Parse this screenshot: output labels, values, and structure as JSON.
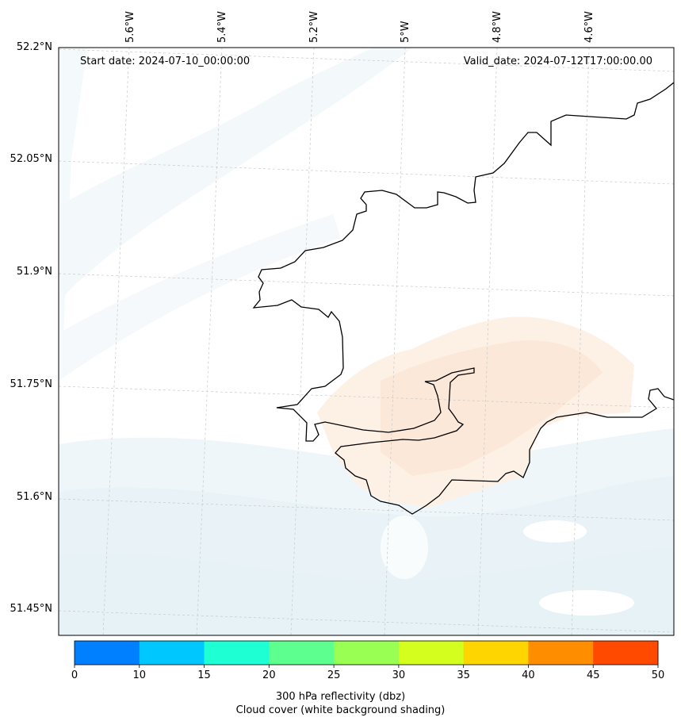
{
  "map": {
    "start_label": "Start date: 2024-07-10_00:00:00",
    "valid_label": "Valid_date: 2024-07-12T17:00:00.00",
    "lon_labels": [
      "5.6°W",
      "5.4°W",
      "5.2°W",
      "5°W",
      "4.8°W",
      "4.6°W"
    ],
    "lat_labels": [
      "52.2°N",
      "52.05°N",
      "51.9°N",
      "51.75°N",
      "51.6°N",
      "51.45°N"
    ]
  },
  "colorbar": {
    "ticks": [
      "0",
      "10",
      "15",
      "20",
      "25",
      "30",
      "35",
      "40",
      "45",
      "50"
    ],
    "colors": [
      "#0080ff",
      "#00c8ff",
      "#1effd4",
      "#5dff8e",
      "#99ff52",
      "#d4ff1e",
      "#ffd500",
      "#ff8d00",
      "#ff4a00"
    ],
    "label_line1": "300 hPa reflectivity (dbz)",
    "label_line2": "Cloud cover (white background shading)"
  }
}
